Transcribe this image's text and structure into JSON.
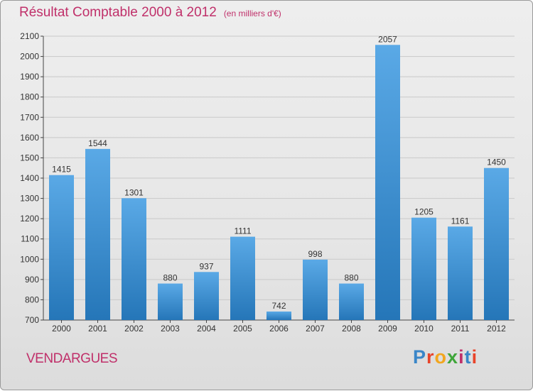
{
  "header": {
    "title": "Résultat Comptable 2000 à 2012",
    "subtitle": "(en milliers d'€)"
  },
  "footer": {
    "commune": "VENDARGUES",
    "logo": "Proxiti",
    "logo_colors": [
      "#3a86c8",
      "#e8442a",
      "#f2a61f",
      "#3fa63a",
      "#c0306a",
      "#3a86c8",
      "#e8442a"
    ]
  },
  "colors": {
    "bar_light": "#5aa9e6",
    "bar_dark": "#2576b8",
    "title": "#c0306a"
  },
  "chart_data": {
    "type": "bar",
    "title": "Résultat Comptable 2000 à 2012",
    "subtitle": "(en milliers d'€)",
    "categories": [
      "2000",
      "2001",
      "2002",
      "2003",
      "2004",
      "2005",
      "2006",
      "2007",
      "2008",
      "2009",
      "2010",
      "2011",
      "2012"
    ],
    "values": [
      1415,
      1544,
      1301,
      880,
      937,
      1111,
      742,
      998,
      880,
      2057,
      1205,
      1161,
      1450
    ],
    "ylim": [
      700,
      2100
    ],
    "yticks": [
      700,
      800,
      900,
      1000,
      1100,
      1200,
      1300,
      1400,
      1500,
      1600,
      1700,
      1800,
      1900,
      2000,
      2100
    ],
    "grid": true,
    "data_labels": true
  }
}
